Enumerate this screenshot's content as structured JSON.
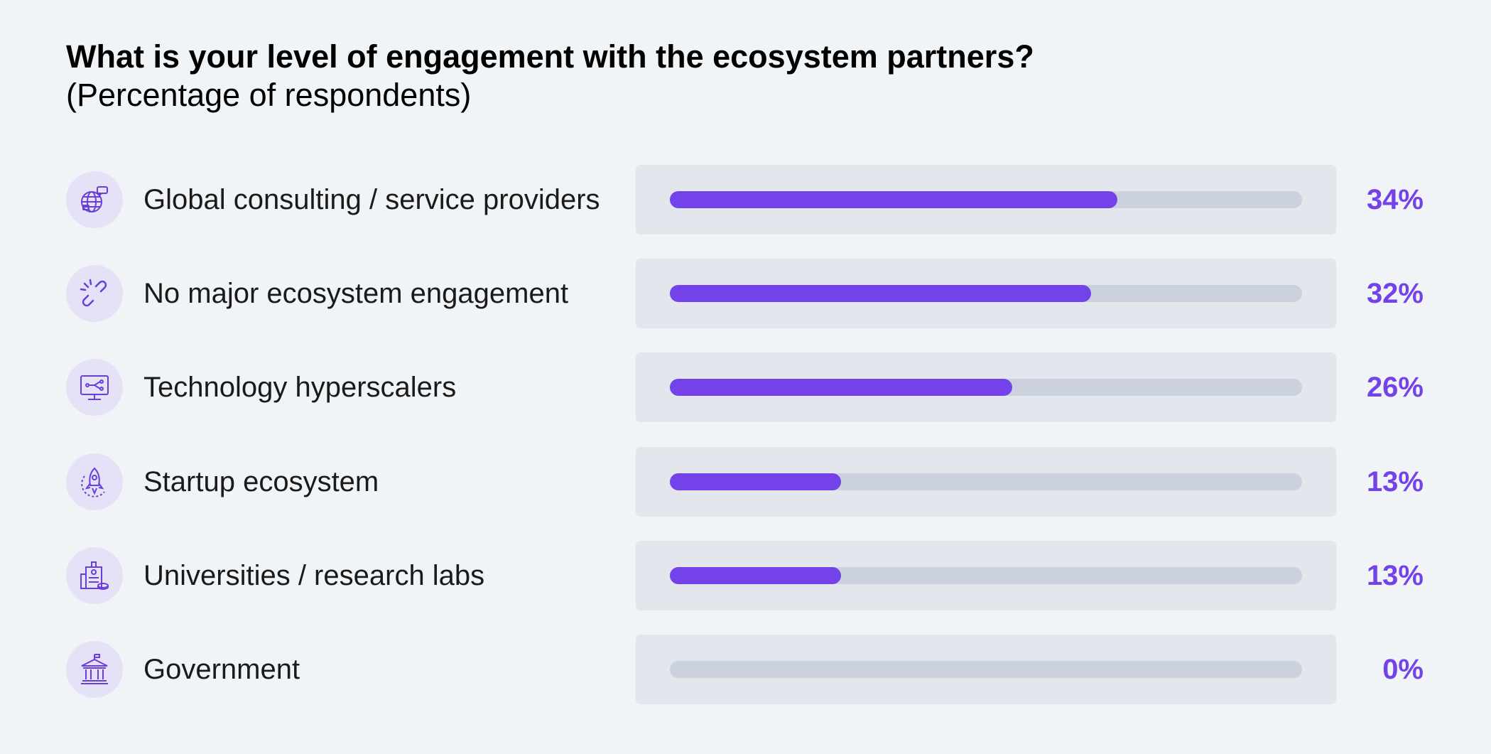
{
  "title": "What is your level of engagement with the ecosystem partners?",
  "subtitle": "(Percentage of respondents)",
  "colors": {
    "accent": "#7342e8",
    "track": "#cbd2de",
    "panel": "#e3e6ec",
    "icon_bg": "#e5e1f6",
    "background": "#f1f4f7"
  },
  "chart_data": {
    "type": "bar",
    "orientation": "horizontal",
    "title": "What is your level of engagement with the ecosystem partners?",
    "subtitle": "(Percentage of respondents)",
    "categories": [
      "Global consulting / service providers",
      "No major ecosystem engagement",
      "Technology hyperscalers",
      "Startup ecosystem",
      "Universities / research labs",
      "Government"
    ],
    "values": [
      34,
      32,
      26,
      13,
      13,
      0
    ],
    "value_labels": [
      "34%",
      "32%",
      "26%",
      "13%",
      "13%",
      "0%"
    ],
    "xlim": [
      0,
      48
    ],
    "icons": [
      "globe-chat-icon",
      "broken-link-icon",
      "monitor-network-icon",
      "rocket-icon",
      "university-building-icon",
      "government-building-icon"
    ],
    "grid": false,
    "legend": "none"
  }
}
